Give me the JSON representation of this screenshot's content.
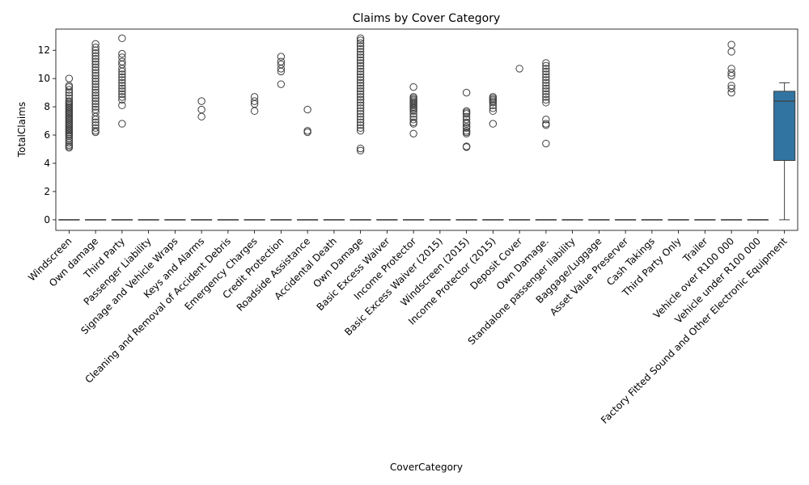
{
  "chart_data": {
    "type": "box",
    "title": "Claims by Cover Category",
    "xlabel": "CoverCategory",
    "ylabel": "TotalClaims",
    "ylim": [
      -0.75,
      13.5
    ],
    "yticks": [
      0,
      2,
      4,
      6,
      8,
      10,
      12
    ],
    "grid": false,
    "box_color": "#3274a1",
    "categories": [
      "Windscreen",
      "Own damage",
      "Third Party",
      "Passenger Liability",
      "Signage and Vehicle Wraps",
      "Keys and Alarms",
      "Cleaning and Removal of Accident Debris",
      "Emergency Charges",
      "Credit Protection",
      "Roadside Assistance",
      "Accidental Death",
      "Own Damage",
      "Basic Excess Waiver",
      "Income Protector",
      "Basic Excess Waiver (2015)",
      "Windscreen (2015)",
      "Income Protector (2015)",
      "Deposit Cover",
      "Own Damage.",
      "Standalone passenger liability",
      "Baggage/Luggage",
      "Asset Value Preserver",
      "Cash Takings",
      "Third Party Only",
      "Trailer",
      "Vehicle over R100 000",
      "Vehicle under R100 000",
      "Factory Fitted Sound and Other Electronic Equipment"
    ],
    "boxes": [
      {
        "min": 0,
        "q1": 0,
        "median": 0,
        "q3": 0,
        "max": 0,
        "outliers": [
          5.1,
          5.2,
          5.3,
          5.45,
          5.6,
          5.75,
          5.9,
          6.0,
          6.1,
          6.2,
          6.3,
          6.4,
          6.5,
          6.6,
          6.7,
          6.8,
          6.9,
          7.0,
          7.1,
          7.2,
          7.3,
          7.4,
          7.5,
          7.6,
          7.7,
          7.8,
          7.9,
          8.0,
          8.1,
          8.2,
          8.3,
          8.4,
          8.6,
          8.8,
          9.0,
          9.2,
          9.4,
          9.5,
          10.0
        ]
      },
      {
        "min": 0,
        "q1": 0,
        "median": 0,
        "q3": 0,
        "max": 0,
        "outliers": [
          6.2,
          6.3,
          6.5,
          6.7,
          6.9,
          7.1,
          7.3,
          7.6,
          7.8,
          8.0,
          8.2,
          8.4,
          8.6,
          8.8,
          9.0,
          9.2,
          9.4,
          9.6,
          9.8,
          10.0,
          10.2,
          10.4,
          10.6,
          10.8,
          11.0,
          11.2,
          11.4,
          11.6,
          11.8,
          12.0,
          12.2,
          12.45
        ]
      },
      {
        "min": 0,
        "q1": 0,
        "median": 0,
        "q3": 0,
        "max": 0,
        "outliers": [
          6.8,
          8.1,
          8.5,
          8.7,
          8.9,
          9.1,
          9.3,
          9.5,
          9.7,
          9.9,
          10.1,
          10.3,
          10.5,
          10.7,
          11.0,
          11.2,
          11.5,
          11.75,
          12.85
        ]
      },
      {
        "min": 0,
        "q1": 0,
        "median": 0,
        "q3": 0,
        "max": 0,
        "outliers": []
      },
      {
        "min": 0,
        "q1": 0,
        "median": 0,
        "q3": 0,
        "max": 0,
        "outliers": []
      },
      {
        "min": 0,
        "q1": 0,
        "median": 0,
        "q3": 0,
        "max": 0,
        "outliers": [
          7.3,
          7.8,
          8.4
        ]
      },
      {
        "min": 0,
        "q1": 0,
        "median": 0,
        "q3": 0,
        "max": 0,
        "outliers": []
      },
      {
        "min": 0,
        "q1": 0,
        "median": 0,
        "q3": 0,
        "max": 0,
        "outliers": [
          7.7,
          8.2,
          8.4,
          8.7
        ]
      },
      {
        "min": 0,
        "q1": 0,
        "median": 0,
        "q3": 0,
        "max": 0,
        "outliers": [
          9.6,
          10.5,
          10.7,
          11.0,
          11.2,
          11.55
        ]
      },
      {
        "min": 0,
        "q1": 0,
        "median": 0,
        "q3": 0,
        "max": 0,
        "outliers": [
          6.2,
          6.3,
          7.8
        ]
      },
      {
        "min": 0,
        "q1": 0,
        "median": 0,
        "q3": 0,
        "max": 0,
        "outliers": []
      },
      {
        "min": 0,
        "q1": 0,
        "median": 0,
        "q3": 0,
        "max": 0,
        "outliers": [
          4.9,
          5.05,
          6.3,
          6.5,
          6.7,
          6.9,
          7.1,
          7.3,
          7.5,
          7.7,
          7.9,
          8.1,
          8.3,
          8.5,
          8.7,
          8.9,
          9.1,
          9.3,
          9.5,
          9.7,
          9.9,
          10.1,
          10.3,
          10.5,
          10.7,
          10.9,
          11.1,
          11.3,
          11.5,
          11.7,
          11.9,
          12.1,
          12.3,
          12.5,
          12.7,
          12.85
        ]
      },
      {
        "min": 0,
        "q1": 0,
        "median": 0,
        "q3": 0,
        "max": 0,
        "outliers": []
      },
      {
        "min": 0,
        "q1": 0,
        "median": 0,
        "q3": 0,
        "max": 0,
        "outliers": [
          6.1,
          6.8,
          6.9,
          7.1,
          7.3,
          7.5,
          7.7,
          7.8,
          7.9,
          8.0,
          8.1,
          8.2,
          8.3,
          8.4,
          8.5,
          8.6,
          8.7,
          9.4
        ]
      },
      {
        "min": 0,
        "q1": 0,
        "median": 0,
        "q3": 0,
        "max": 0,
        "outliers": []
      },
      {
        "min": 0,
        "q1": 0,
        "median": 0,
        "q3": 0,
        "max": 0,
        "outliers": [
          5.15,
          5.2,
          6.1,
          6.2,
          6.3,
          6.5,
          6.6,
          6.8,
          6.9,
          7.1,
          7.3,
          7.5,
          7.6,
          7.7,
          9.0
        ]
      },
      {
        "min": 0,
        "q1": 0,
        "median": 0,
        "q3": 0,
        "max": 0,
        "outliers": [
          6.8,
          7.7,
          7.9,
          8.1,
          8.3,
          8.4,
          8.5,
          8.6,
          8.7
        ]
      },
      {
        "min": 0,
        "q1": 0,
        "median": 0,
        "q3": 0,
        "max": 0,
        "outliers": [
          10.7
        ]
      },
      {
        "min": 0,
        "q1": 0,
        "median": 0,
        "q3": 0,
        "max": 0,
        "outliers": [
          5.4,
          6.7,
          6.8,
          7.1,
          8.3,
          8.5,
          8.7,
          8.9,
          9.1,
          9.3,
          9.5,
          9.7,
          9.9,
          10.1,
          10.3,
          10.5,
          10.7,
          10.9,
          11.1
        ]
      },
      {
        "min": 0,
        "q1": 0,
        "median": 0,
        "q3": 0,
        "max": 0,
        "outliers": []
      },
      {
        "min": 0,
        "q1": 0,
        "median": 0,
        "q3": 0,
        "max": 0,
        "outliers": []
      },
      {
        "min": 0,
        "q1": 0,
        "median": 0,
        "q3": 0,
        "max": 0,
        "outliers": []
      },
      {
        "min": 0,
        "q1": 0,
        "median": 0,
        "q3": 0,
        "max": 0,
        "outliers": []
      },
      {
        "min": 0,
        "q1": 0,
        "median": 0,
        "q3": 0,
        "max": 0,
        "outliers": []
      },
      {
        "min": 0,
        "q1": 0,
        "median": 0,
        "q3": 0,
        "max": 0,
        "outliers": []
      },
      {
        "min": 0,
        "q1": 0,
        "median": 0,
        "q3": 0,
        "max": 0,
        "outliers": [
          9.0,
          9.3,
          9.5,
          10.2,
          10.4,
          10.7,
          11.9,
          12.4
        ]
      },
      {
        "min": 0,
        "q1": 0,
        "median": 0,
        "q3": 0,
        "max": 0,
        "outliers": []
      },
      {
        "min": 0,
        "q1": 4.2,
        "median": 8.4,
        "q3": 9.1,
        "max": 9.7,
        "outliers": []
      }
    ]
  }
}
